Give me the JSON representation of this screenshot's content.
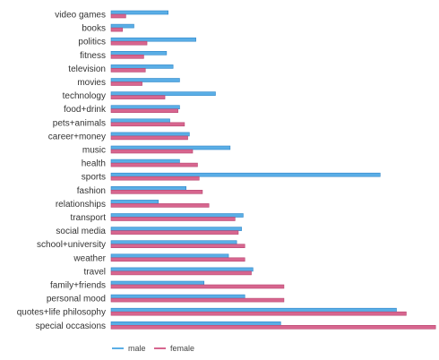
{
  "chart_data": {
    "type": "bar",
    "orientation": "horizontal",
    "title": "",
    "xlabel": "",
    "ylabel": "",
    "xlim": [
      0,
      10
    ],
    "grid": false,
    "legend_position": "bottom-left",
    "categories": [
      "video games",
      "books",
      "politics",
      "fitness",
      "television",
      "movies",
      "technology",
      "food+drink",
      "pets+animals",
      "career+money",
      "music",
      "health",
      "sports",
      "fashion",
      "relationships",
      "transport",
      "social media",
      "school+university",
      "weather",
      "travel",
      "family+friends",
      "personal mood",
      "quotes+life philosophy",
      "special occasions"
    ],
    "series": [
      {
        "name": "male",
        "color": "#5aaee6",
        "values": [
          1.75,
          0.7,
          2.6,
          1.7,
          1.9,
          2.1,
          3.2,
          2.1,
          1.8,
          2.4,
          3.65,
          2.1,
          8.25,
          2.3,
          1.45,
          4.05,
          4.0,
          3.85,
          3.6,
          4.35,
          2.85,
          4.1,
          8.75,
          5.2
        ]
      },
      {
        "name": "female",
        "color": "#d7668f",
        "values": [
          0.45,
          0.35,
          1.1,
          1.0,
          1.05,
          0.95,
          1.65,
          2.05,
          2.25,
          2.35,
          2.5,
          2.65,
          2.7,
          2.8,
          3.0,
          3.8,
          3.9,
          4.1,
          4.1,
          4.3,
          5.3,
          5.3,
          9.05,
          9.95
        ]
      }
    ]
  },
  "legend": {
    "male_label": "male",
    "female_label": "female"
  }
}
